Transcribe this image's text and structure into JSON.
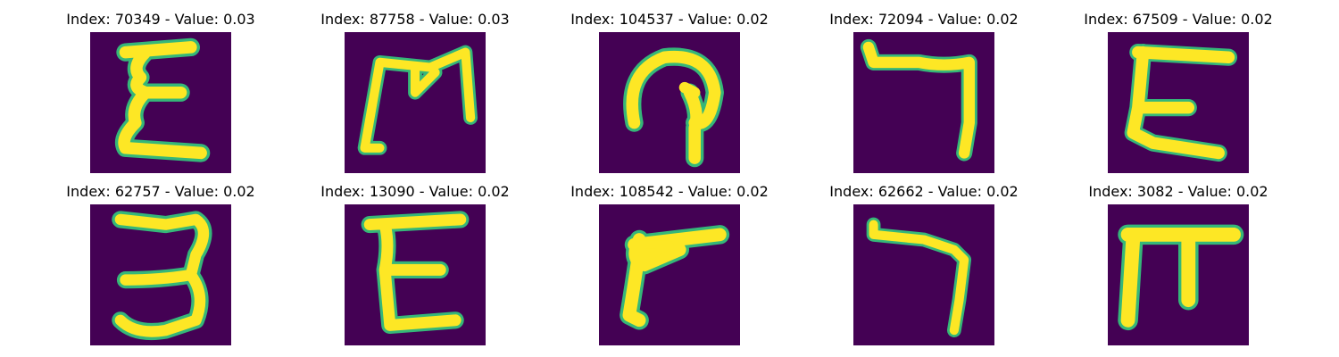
{
  "colors": {
    "background": "#440154",
    "stroke": "#fde725",
    "edge": "#35b779"
  },
  "tiles": [
    {
      "title": "Index: 70349 - Value: 0.03"
    },
    {
      "title": "Index: 87758 - Value: 0.03"
    },
    {
      "title": "Index: 104537 - Value: 0.02"
    },
    {
      "title": "Index: 72094 - Value: 0.02"
    },
    {
      "title": "Index: 67509 - Value: 0.02"
    },
    {
      "title": "Index: 62757 - Value: 0.02"
    },
    {
      "title": "Index: 13090 - Value: 0.02"
    },
    {
      "title": "Index: 108542 - Value: 0.02"
    },
    {
      "title": "Index: 62662 - Value: 0.02"
    },
    {
      "title": "Index: 3082 - Value: 0.02"
    }
  ]
}
